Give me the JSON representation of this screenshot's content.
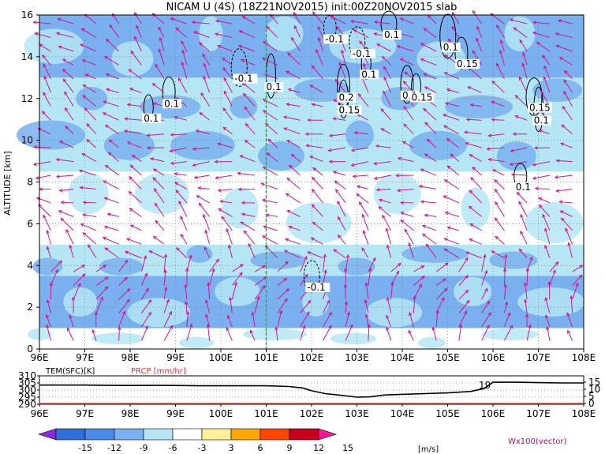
{
  "chart_data": [
    {
      "type": "heatmap",
      "title": "NICAM U (4S) (18Z21NOV2015) init:00Z20NOV2015 slab",
      "xlabel": "",
      "ylabel": "ALTITUDE [km]",
      "x_ticks": [
        "96E",
        "97E",
        "98E",
        "99E",
        "100E",
        "101E",
        "102E",
        "103E",
        "104E",
        "105E",
        "106E",
        "107E",
        "108E"
      ],
      "y_ticks": [
        "0",
        "2",
        "4",
        "6",
        "8",
        "10",
        "12",
        "14",
        "16"
      ],
      "xlim": [
        96,
        108
      ],
      "ylim": [
        0,
        16
      ],
      "grid": true,
      "marker_line_lon": 101,
      "bands": [
        {
          "z0": 0.0,
          "z1": 1.0,
          "u": -3
        },
        {
          "z0": 1.0,
          "z1": 3.5,
          "u": -9
        },
        {
          "z0": 3.5,
          "z1": 5.0,
          "u": -4
        },
        {
          "z0": 5.0,
          "z1": 8.5,
          "u": 2
        },
        {
          "z0": 8.5,
          "z1": 11.0,
          "u": -4
        },
        {
          "z0": 11.0,
          "z1": 13.0,
          "u": -5
        },
        {
          "z0": 13.0,
          "z1": 16.0,
          "u": -8
        }
      ],
      "contour_labels": [
        {
          "lon": 98.3,
          "z": 10.9,
          "text": "0.1"
        },
        {
          "lon": 98.75,
          "z": 11.6,
          "text": "0.1"
        },
        {
          "lon": 100.3,
          "z": 12.8,
          "text": "-0.1"
        },
        {
          "lon": 101.0,
          "z": 12.4,
          "text": "0.1"
        },
        {
          "lon": 102.3,
          "z": 14.7,
          "text": "-0.1"
        },
        {
          "lon": 102.9,
          "z": 14.0,
          "text": "-0.1"
        },
        {
          "lon": 102.6,
          "z": 11.3,
          "text": "0.15"
        },
        {
          "lon": 102.6,
          "z": 11.9,
          "text": "0.2"
        },
        {
          "lon": 103.6,
          "z": 14.9,
          "text": "0.1"
        },
        {
          "lon": 103.1,
          "z": 13.0,
          "text": "0.1"
        },
        {
          "lon": 104.0,
          "z": 12.0,
          "text": "0.1"
        },
        {
          "lon": 104.9,
          "z": 14.3,
          "text": "0.1"
        },
        {
          "lon": 104.2,
          "z": 11.9,
          "text": "0.15"
        },
        {
          "lon": 105.2,
          "z": 13.5,
          "text": "0.15"
        },
        {
          "lon": 106.8,
          "z": 11.4,
          "text": "0.15"
        },
        {
          "lon": 106.9,
          "z": 10.8,
          "text": "0.1"
        },
        {
          "lon": 106.5,
          "z": 7.6,
          "text": "0.1"
        },
        {
          "lon": 101.9,
          "z": 2.8,
          "text": "-0.1"
        }
      ],
      "quiver_legend": "Wx100(vector)",
      "colorbar": {
        "ticks": [
          "-15",
          "-12",
          "-9",
          "-6",
          "-3",
          "3",
          "6",
          "9",
          "12",
          "15"
        ],
        "unit": "[m/s]",
        "colors": [
          "#8a2be2",
          "#2f6fd8",
          "#4a8ae8",
          "#7ab0f0",
          "#b4e6f4",
          "#ffffff",
          "#fff09a",
          "#ffa500",
          "#ff4500",
          "#c8001e",
          "#ff1493"
        ]
      }
    },
    {
      "type": "line",
      "left_label": "TEM(SFC)[K]",
      "right_label": "PRCP [mm/hr]",
      "left_ticks": [
        "310",
        "305",
        "300",
        "295",
        "290"
      ],
      "right_ticks": [
        "15",
        "10",
        "5",
        "0"
      ],
      "x_ticks": [
        "96E",
        "97E",
        "98E",
        "99E",
        "100E",
        "101E",
        "102E",
        "103E",
        "104E",
        "105E",
        "106E",
        "107E",
        "108E"
      ],
      "xlim": [
        96,
        108
      ],
      "ylim": [
        290,
        310
      ],
      "peak_label": "19",
      "series": [
        {
          "x": [
            96.0,
            96.5,
            97.0,
            97.5,
            98.0,
            98.5,
            99.0,
            99.5,
            100.0,
            100.5,
            101.0,
            101.5,
            101.8,
            102.0,
            102.3,
            102.6,
            103.0,
            103.3,
            103.6,
            104.0,
            104.5,
            105.0,
            105.5,
            105.8,
            106.0,
            106.5,
            107.0,
            107.5,
            108.0
          ],
          "y": [
            303.5,
            303.5,
            303.5,
            303.3,
            303.2,
            303.3,
            303.2,
            303.0,
            303.0,
            303.0,
            303.0,
            302.5,
            301.5,
            299.5,
            297.5,
            296.5,
            295.0,
            295.2,
            296.5,
            297.0,
            297.5,
            298.0,
            299.0,
            301.0,
            305.5,
            305.5,
            305.2,
            305.0,
            305.0
          ]
        }
      ]
    }
  ]
}
